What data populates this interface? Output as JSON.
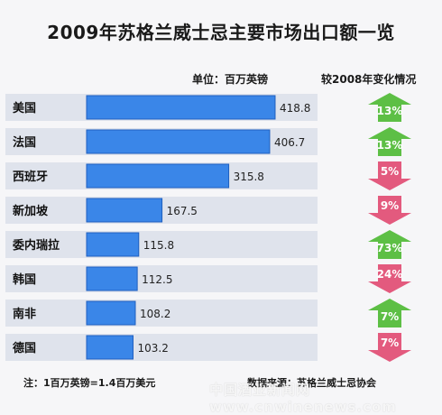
{
  "colors": {
    "bar": "#3a86e8",
    "bar_edge": "#1f5fbf",
    "row_bg": "#dfe3ec",
    "up_arrow": "#5dbf45",
    "down_arrow": "#e35a7e"
  },
  "chart_data": {
    "type": "bar",
    "orientation": "horizontal",
    "title": "2009年苏格兰威士忌主要市场出口额一览",
    "unit": "单位：百万英镑",
    "change_header": "较2008年变化情况",
    "categories": [
      "美国",
      "法国",
      "西班牙",
      "新加坡",
      "委内瑞拉",
      "韩国",
      "南非",
      "德国"
    ],
    "values": [
      418.8,
      406.7,
      315.8,
      167.5,
      115.8,
      112.5,
      108.2,
      103.2
    ],
    "changes": [
      {
        "label": "13%",
        "direction": "up"
      },
      {
        "label": "13%",
        "direction": "up"
      },
      {
        "label": "5%",
        "direction": "down"
      },
      {
        "label": "9%",
        "direction": "down"
      },
      {
        "label": "73%",
        "direction": "up"
      },
      {
        "label": "24%",
        "direction": "down"
      },
      {
        "label": "7%",
        "direction": "up"
      },
      {
        "label": "7%",
        "direction": "down"
      }
    ],
    "footnote": "注：1百万英镑=1.4百万美元",
    "source": "数据来源：苏格兰威士忌协会"
  },
  "watermark": "中国酒业新闻网 www.cnwinenews.com"
}
